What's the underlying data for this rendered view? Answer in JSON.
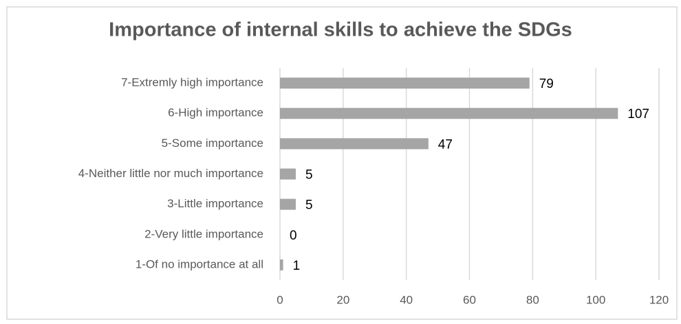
{
  "chart_data": {
    "type": "bar",
    "orientation": "horizontal",
    "title": "Importance of internal skills to achieve the SDGs",
    "categories": [
      "7-Extremly high importance",
      "6-High importance",
      "5-Some importance",
      "4-Neither little nor much importance",
      "3-Little importance",
      "2-Very little importance",
      "1-Of no importance at all"
    ],
    "values": [
      79,
      107,
      47,
      5,
      5,
      0,
      1
    ],
    "color": "#a5a5a5",
    "xlim": [
      0,
      120
    ],
    "xticks": [
      0,
      20,
      40,
      60,
      80,
      100,
      120
    ],
    "grid": true
  }
}
